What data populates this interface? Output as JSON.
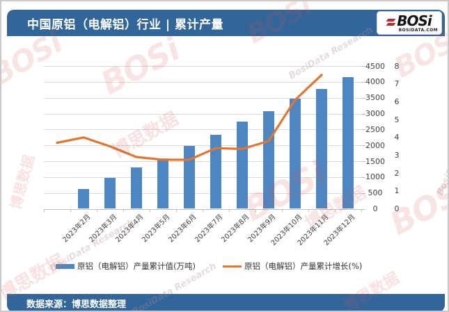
{
  "header": {
    "title": "中国原铝（电解铝）行业 | 累计产量",
    "logo_text": "BOSi",
    "logo_subtext": "BOSIDATA.COM"
  },
  "footer": {
    "source": "数据来源：博思数据整理"
  },
  "watermark": {
    "logo": "BOSi",
    "cjk": "博思数据",
    "script": "BosiData Research"
  },
  "colors": {
    "header_bg": "#32669B",
    "footer_bg": "#32669B",
    "bar": "#4E86C2",
    "line": "#E0762F",
    "gridline": "#D9D9D9",
    "axis": "#BFBFBF",
    "axis_text": "#3F3F3F"
  },
  "chart_data": {
    "type": "bar",
    "subtype": "bar-line combo",
    "title": "中国原铝（电解铝）行业 | 累计产量",
    "categories": [
      "2023年2月",
      "2023年3月",
      "2023年4月",
      "2023年5月",
      "2023年6月",
      "2023年7月",
      "2023年8月",
      "2023年9月",
      "2023年10月",
      "2023年11月",
      "2023年12月"
    ],
    "series": [
      {
        "name": "原铝（电解铝）产量累计值(万吨)",
        "type": "bar",
        "axis": "value",
        "color": "#4E86C2",
        "values": [
          620,
          980,
          1310,
          1590,
          1990,
          2340,
          2740,
          3080,
          3460,
          3780,
          4160
        ]
      },
      {
        "name": "原铝（电解铝）产量累计增长(%)",
        "type": "line",
        "axis": "percent",
        "color": "#E0762F",
        "values": [
          3.7,
          4.0,
          3.5,
          2.9,
          2.75,
          2.75,
          3.4,
          3.35,
          3.8,
          6.1,
          7.5
        ]
      }
    ],
    "value_axis": {
      "min": 0,
      "max": 4500,
      "step": 500,
      "side": "right"
    },
    "percent_axis": {
      "min": 0,
      "max": 8,
      "step": 1,
      "side": "right"
    },
    "grid": true,
    "legend_position": "bottom",
    "x_tick_rotation": -45,
    "line_x_offset_categories": -1
  }
}
